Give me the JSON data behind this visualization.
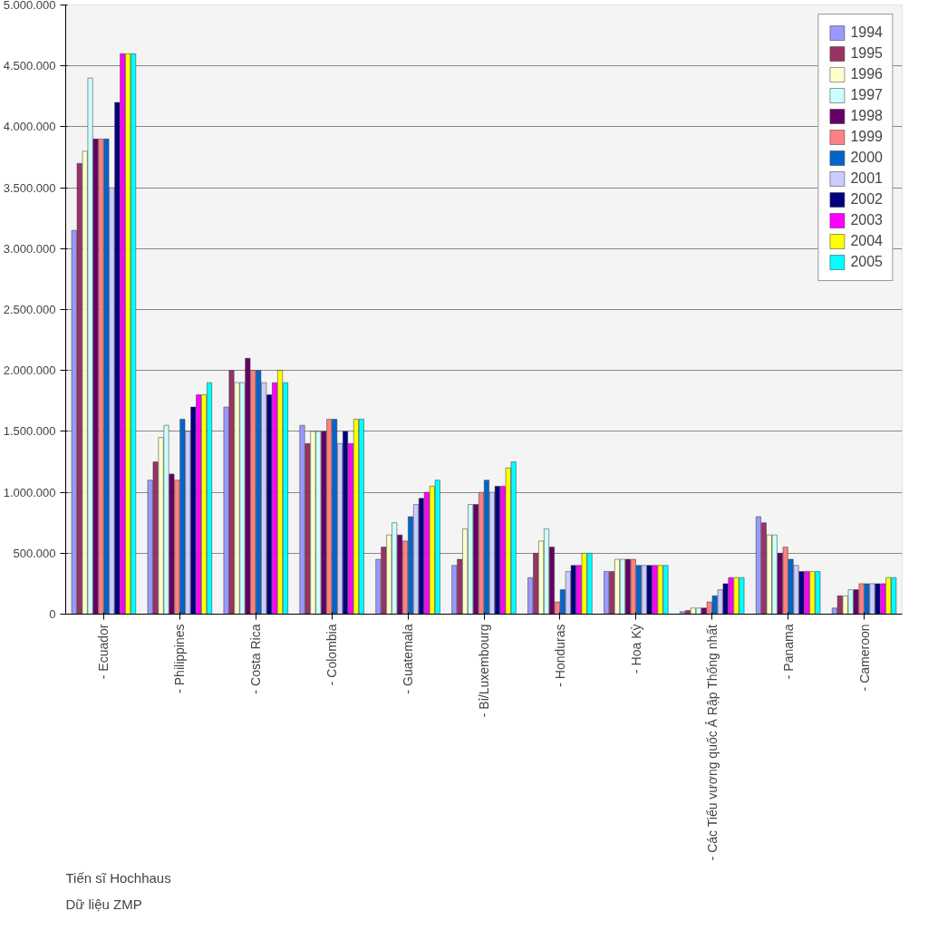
{
  "chart_data": {
    "type": "bar",
    "categories": [
      "- Ecuador",
      "- Philippines",
      "- Costa Rica",
      "- Colombia",
      "- Guatemala",
      "- Bỉ/Luxembourg",
      "- Honduras",
      "- Hoa Kỳ",
      "- Các Tiểu vương quốc Ả Rập Thống nhất",
      "- Panama",
      "- Cameroon"
    ],
    "series": [
      {
        "name": "1994",
        "color": "#9999ff",
        "values": [
          3150000,
          1100000,
          1700000,
          1550000,
          450000,
          400000,
          300000,
          350000,
          20000,
          800000,
          50000
        ]
      },
      {
        "name": "1995",
        "color": "#993366",
        "values": [
          3700000,
          1250000,
          2000000,
          1400000,
          550000,
          450000,
          500000,
          350000,
          30000,
          750000,
          150000
        ]
      },
      {
        "name": "1996",
        "color": "#ffffcc",
        "values": [
          3800000,
          1450000,
          1900000,
          1500000,
          650000,
          700000,
          600000,
          450000,
          50000,
          650000,
          150000
        ]
      },
      {
        "name": "1997",
        "color": "#ccffff",
        "values": [
          4400000,
          1550000,
          1900000,
          1500000,
          750000,
          900000,
          700000,
          450000,
          50000,
          650000,
          200000
        ]
      },
      {
        "name": "1998",
        "color": "#660066",
        "values": [
          3900000,
          1150000,
          2100000,
          1500000,
          650000,
          900000,
          550000,
          450000,
          50000,
          500000,
          200000
        ]
      },
      {
        "name": "1999",
        "color": "#ff8080",
        "values": [
          3900000,
          1100000,
          2000000,
          1600000,
          600000,
          1000000,
          100000,
          450000,
          100000,
          550000,
          250000
        ]
      },
      {
        "name": "2000",
        "color": "#0066cc",
        "values": [
          3900000,
          1600000,
          2000000,
          1600000,
          800000,
          1100000,
          200000,
          400000,
          150000,
          450000,
          250000
        ]
      },
      {
        "name": "2001",
        "color": "#ccccff",
        "values": [
          3500000,
          1500000,
          1900000,
          1400000,
          900000,
          1000000,
          350000,
          400000,
          200000,
          400000,
          250000
        ]
      },
      {
        "name": "2002",
        "color": "#000080",
        "values": [
          4200000,
          1700000,
          1800000,
          1500000,
          950000,
          1050000,
          400000,
          400000,
          250000,
          350000,
          250000
        ]
      },
      {
        "name": "2003",
        "color": "#ff00ff",
        "values": [
          4600000,
          1800000,
          1900000,
          1400000,
          1000000,
          1050000,
          400000,
          400000,
          300000,
          350000,
          250000
        ]
      },
      {
        "name": "2004",
        "color": "#ffff00",
        "values": [
          4600000,
          1800000,
          2000000,
          1600000,
          1050000,
          1200000,
          500000,
          400000,
          300000,
          350000,
          300000
        ]
      },
      {
        "name": "2005",
        "color": "#00ffff",
        "values": [
          4600000,
          1900000,
          1900000,
          1600000,
          1100000,
          1250000,
          500000,
          400000,
          300000,
          350000,
          300000
        ]
      }
    ],
    "ylim": [
      0,
      5000000
    ],
    "yticks": [
      {
        "value": 0,
        "label": "0"
      },
      {
        "value": 500000,
        "label": "500.000"
      },
      {
        "value": 1000000,
        "label": "1.000.000"
      },
      {
        "value": 1500000,
        "label": "1.500.000"
      },
      {
        "value": 2000000,
        "label": "2.000.000"
      },
      {
        "value": 2500000,
        "label": "2.500.000"
      },
      {
        "value": 3000000,
        "label": "3.000.000"
      },
      {
        "value": 3500000,
        "label": "3.500.000"
      },
      {
        "value": 4000000,
        "label": "4.000.000"
      },
      {
        "value": 4500000,
        "label": "4.500.000"
      },
      {
        "value": 5000000,
        "label": "5.000.000"
      }
    ],
    "grid": "y",
    "legend": "top right",
    "annotations": [
      "Tiến sĩ Hochhaus",
      "Dữ liệu ZMP"
    ]
  }
}
